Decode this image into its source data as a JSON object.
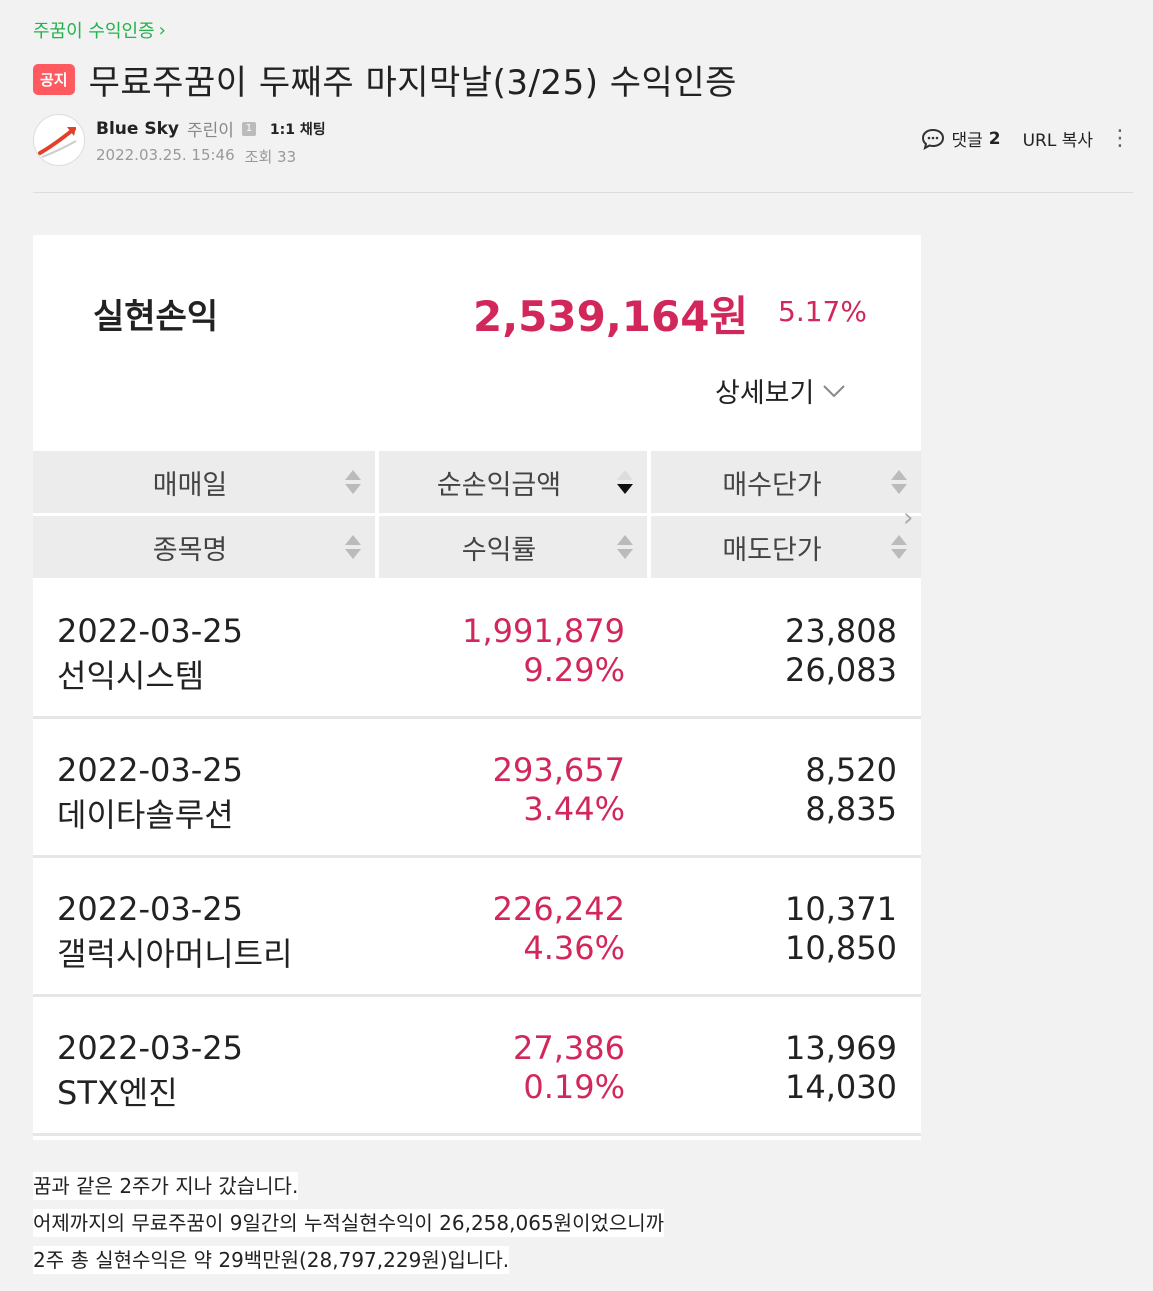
{
  "breadcrumb": {
    "label": "주꿈이 수익인증",
    "chevron": "›"
  },
  "post": {
    "badge": "공지",
    "title": "무료주꿈이 두째주 마지막날(3/25) 수익인증",
    "author": "Blue Sky",
    "grade": "주린이",
    "grade_icon": "1",
    "chat": "1:1 채팅",
    "date": "2022.03.25. 15:46",
    "views_label": "조회 33"
  },
  "tools": {
    "comment_label": "댓글",
    "comment_count": "2",
    "url_copy": "URL 복사"
  },
  "card": {
    "realized_label": "실현손익",
    "realized_amount": "2,539,164원",
    "realized_rate": "5.17%",
    "detail_label": "상세보기",
    "headers_row1": [
      "매매일",
      "순손익금액",
      "매수단가"
    ],
    "headers_row2": [
      "종목명",
      "수익률",
      "매도단가"
    ],
    "rows": [
      {
        "date": "2022-03-25",
        "name": "선익시스템",
        "profit": "1,991,879",
        "rate": "9.29%",
        "buy": "23,808",
        "sell": "26,083"
      },
      {
        "date": "2022-03-25",
        "name": "데이타솔루션",
        "profit": "293,657",
        "rate": "3.44%",
        "buy": "8,520",
        "sell": "8,835"
      },
      {
        "date": "2022-03-25",
        "name": "갤럭시아머니트리",
        "profit": "226,242",
        "rate": "4.36%",
        "buy": "10,371",
        "sell": "10,850"
      },
      {
        "date": "2022-03-25",
        "name": "STX엔진",
        "profit": "27,386",
        "rate": "0.19%",
        "buy": "13,969",
        "sell": "14,030"
      }
    ]
  },
  "body": [
    "꿈과 같은 2주가 지나 갔습니다.",
    "어제까지의 무료주꿈이 9일간의 누적실현수익이 26,258,065원이었으니까",
    "2주 총 실현수익은 약 29백만원(28,797,229원)입니다."
  ],
  "colors": {
    "accent_green": "#22b14c",
    "badge_red": "#ff5a5f",
    "profit_red": "#d2275a"
  }
}
